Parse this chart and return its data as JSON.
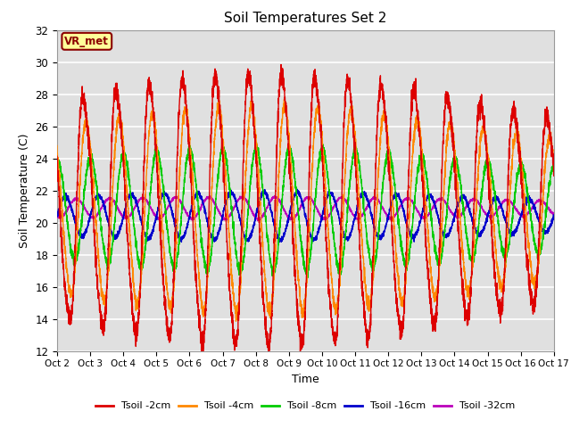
{
  "title": "Soil Temperatures Set 2",
  "xlabel": "Time",
  "ylabel": "Soil Temperature (C)",
  "ylim": [
    12,
    32
  ],
  "xlim": [
    0,
    360
  ],
  "xtick_labels": [
    "Oct 2",
    "Oct 3",
    "Oct 4",
    "Oct 5",
    "Oct 6",
    "Oct 7",
    "Oct 8",
    "Oct 9",
    "Oct 10",
    "Oct 11",
    "Oct 12",
    "Oct 13",
    "Oct 14",
    "Oct 15",
    "Oct 16",
    "Oct 17"
  ],
  "xtick_positions": [
    0,
    24,
    48,
    72,
    96,
    120,
    144,
    168,
    192,
    216,
    240,
    264,
    288,
    312,
    336,
    360
  ],
  "series_names": [
    "Tsoil -2cm",
    "Tsoil -4cm",
    "Tsoil -8cm",
    "Tsoil -16cm",
    "Tsoil -32cm"
  ],
  "series_colors": [
    "#dd0000",
    "#ff8800",
    "#00cc00",
    "#0000cc",
    "#bb00bb"
  ],
  "series_amplitudes": [
    8.0,
    5.5,
    3.2,
    1.2,
    0.55
  ],
  "series_offsets": [
    20.8,
    20.8,
    20.8,
    20.4,
    20.9
  ],
  "series_phase_lags": [
    0.0,
    1.5,
    4.5,
    10.0,
    18.0
  ],
  "annotation_text": "VR_met",
  "annotation_bg": "#ffff99",
  "annotation_border": "#8B0000",
  "plot_bg": "#e0e0e0",
  "fig_bg": "#ffffff",
  "grid_color": "#ffffff"
}
